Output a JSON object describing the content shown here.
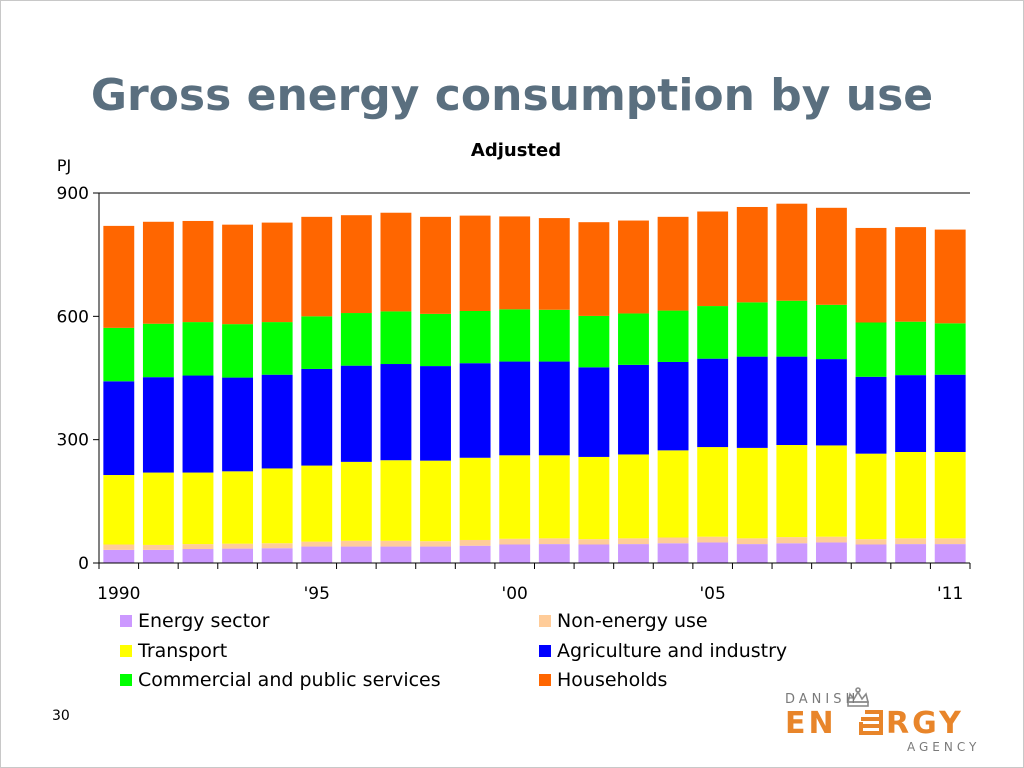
{
  "slide": {
    "title": "Gross energy consumption by use",
    "page_number": "30"
  },
  "logo": {
    "line1": "DANISH",
    "line2a": "EN",
    "line2b": "RGY",
    "line3": "AGENCY",
    "icon": "crown-icon",
    "color": "#e8852a",
    "gray": "#7a7a7a"
  },
  "chart_data": {
    "type": "bar",
    "stacked": true,
    "title": "Adjusted",
    "ylabel": "PJ",
    "xlabel": "",
    "ylim": [
      0,
      900
    ],
    "yticks": [
      0,
      300,
      600,
      900
    ],
    "grid": "horizontal at 900",
    "legend_position": "bottom",
    "categories": [
      "1990",
      "1991",
      "1992",
      "1993",
      "1994",
      "1995",
      "1996",
      "1997",
      "1998",
      "1999",
      "2000",
      "2001",
      "2002",
      "2003",
      "2004",
      "2005",
      "2006",
      "2007",
      "2008",
      "2009",
      "2010",
      "2011"
    ],
    "xtick_labels": [
      {
        "index": 0,
        "label": "1990"
      },
      {
        "index": 5,
        "label": "'95"
      },
      {
        "index": 10,
        "label": "'00"
      },
      {
        "index": 15,
        "label": "'05"
      },
      {
        "index": 21,
        "label": "'11"
      }
    ],
    "series": [
      {
        "name": "Energy sector",
        "color": "#cc99ff",
        "values": [
          32,
          32,
          34,
          35,
          36,
          40,
          40,
          40,
          40,
          42,
          45,
          46,
          45,
          46,
          48,
          50,
          46,
          48,
          50,
          45,
          46,
          46
        ]
      },
      {
        "name": "Non-energy use",
        "color": "#ffcc99",
        "values": [
          13,
          12,
          12,
          12,
          12,
          12,
          14,
          14,
          13,
          14,
          14,
          14,
          13,
          14,
          14,
          14,
          14,
          15,
          14,
          13,
          14,
          14
        ]
      },
      {
        "name": "Transport",
        "color": "#ffff00",
        "values": [
          169,
          176,
          174,
          176,
          182,
          185,
          192,
          196,
          196,
          200,
          203,
          202,
          200,
          204,
          212,
          218,
          220,
          224,
          222,
          208,
          210,
          210
        ]
      },
      {
        "name": "Agriculture and industry",
        "color": "#0000ff",
        "values": [
          228,
          232,
          236,
          228,
          228,
          235,
          234,
          234,
          230,
          230,
          228,
          228,
          218,
          218,
          215,
          215,
          222,
          215,
          210,
          187,
          187,
          188
        ]
      },
      {
        "name": "Commercial and public services",
        "color": "#00ff00",
        "values": [
          130,
          130,
          130,
          130,
          128,
          128,
          128,
          128,
          127,
          127,
          127,
          126,
          125,
          125,
          125,
          128,
          132,
          136,
          132,
          132,
          130,
          125
        ]
      },
      {
        "name": "Households",
        "color": "#ff6600",
        "values": [
          248,
          248,
          246,
          242,
          242,
          242,
          238,
          240,
          236,
          232,
          226,
          223,
          228,
          226,
          228,
          230,
          232,
          236,
          236,
          230,
          230,
          228
        ]
      }
    ]
  }
}
